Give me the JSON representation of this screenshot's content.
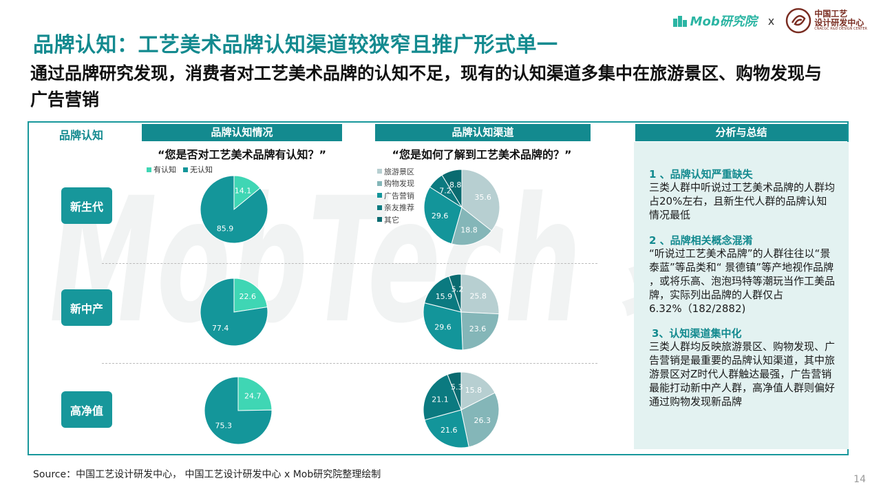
{
  "logos": {
    "mob_text": "Mob研究院",
    "separator": "x",
    "center_line1": "中国工艺",
    "center_line2": "设计研发中心",
    "center_line3": "CNACGC R&D DESIGN CENTER"
  },
  "title": "品牌认知：工艺美术品牌认知渠道较狭窄且推广形式单一",
  "subtitle": "通过品牌研究发现，消费者对工艺美术品牌的认知不足，现有的认知渠道多集中在旅游景区、购物发现与广告营销",
  "watermark": "MobTech 袤博",
  "brand_header": "品牌认知",
  "col_headers": {
    "awareness": "品牌认知情况",
    "channel": "品牌认知渠道",
    "summary": "分析与总结"
  },
  "questions": {
    "awareness": "“您是否对工艺美术品牌有认知？”",
    "channel": "“您是如何了解到工艺美术品牌的？”"
  },
  "segments": [
    "新生代",
    "新中产",
    "高净值"
  ],
  "colors": {
    "teal_dark": "#138a8f",
    "aware": "#3fd6b4",
    "unaware": "#14969a",
    "channel": [
      "#b7cfd1",
      "#84b6b8",
      "#13959a",
      "#0b7a80",
      "#0a6b70"
    ]
  },
  "chart_data": [
    {
      "type": "pie",
      "title": "品牌认知情况",
      "legend": [
        "有认知",
        "无认知"
      ],
      "series": [
        {
          "name": "新生代",
          "values": [
            14.1,
            85.9
          ]
        },
        {
          "name": "新中产",
          "values": [
            22.6,
            77.4
          ]
        },
        {
          "name": "高净值",
          "values": [
            24.7,
            75.3
          ]
        }
      ]
    },
    {
      "type": "pie",
      "title": "品牌认知渠道",
      "legend": [
        "旅游景区",
        "购物发现",
        "广告营销",
        "亲友推荐",
        "其它"
      ],
      "series": [
        {
          "name": "新生代",
          "values": [
            35.6,
            18.8,
            29.6,
            7.2,
            8.8
          ]
        },
        {
          "name": "新中产",
          "values": [
            25.8,
            23.6,
            29.6,
            15.9,
            5.2
          ]
        },
        {
          "name": "高净值",
          "values": [
            15.8,
            26.3,
            21.6,
            21.1,
            5.3
          ]
        }
      ]
    }
  ],
  "summary": {
    "sections": [
      {
        "title": "1 、品牌认知严重缺失",
        "body": "三类人群中听说过工艺美术品牌的人群均占20%左右，且新生代人群的品牌认知情况最低"
      },
      {
        "title": "2 、品牌相关概念混淆",
        "body": "“听说过工艺美术品牌”的人群往往以“景泰蓝”等品类和“ 景德镇”等产地视作品牌 ，或将乐高、泡泡玛特等潮玩当作工美品牌，实际列出品牌的人群仅占6.32%（182/2882)"
      },
      {
        "title": "3、认知渠道集中化",
        "body": "三类人群均反映旅游景区、购物发现、广告营销是最重要的品牌认知渠道，其中旅游景区对Z时代人群触达最强，广告营销最能打动新中产人群，高净值人群则偏好通过购物发现新品牌"
      }
    ]
  },
  "source": "Source：中国工艺设计研发中心， 中国工艺设计研发中心 x Mob研究院整理绘制",
  "page_number": "14"
}
